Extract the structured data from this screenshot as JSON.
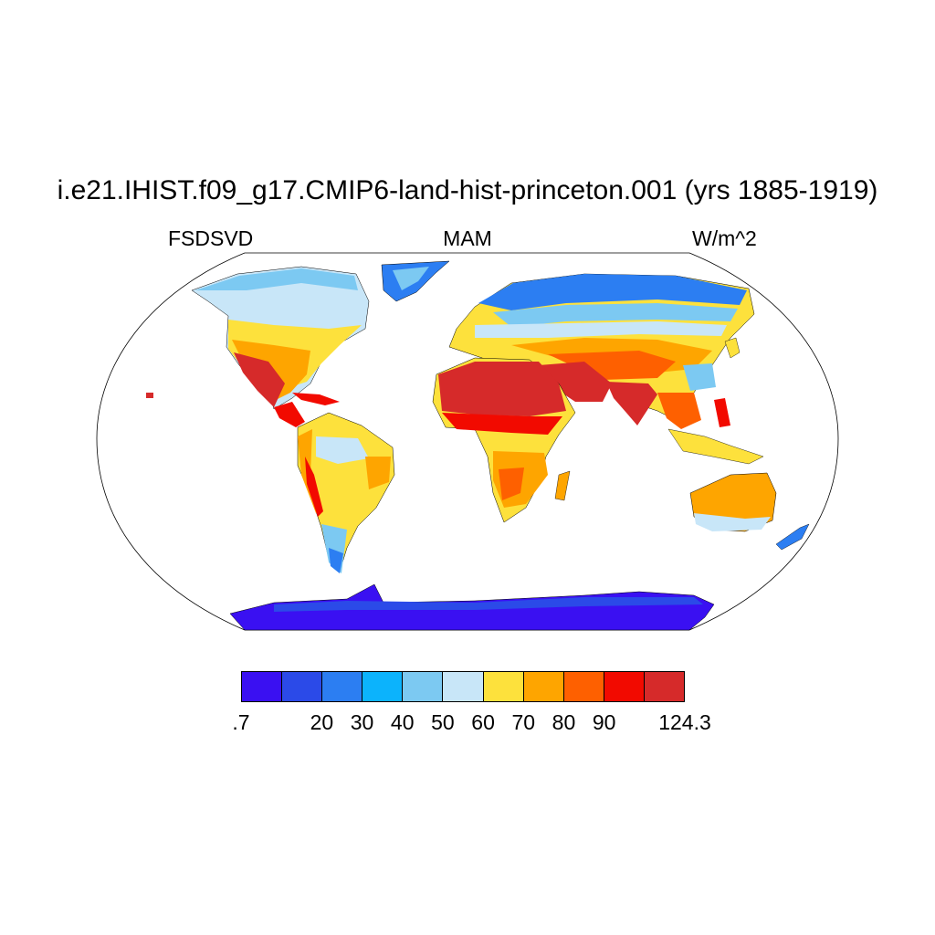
{
  "title": "i.e21.IHIST.f09_g17.CMIP6-land-hist-princeton.001 (yrs 1885-1919)",
  "variable": "FSDSVD",
  "season": "MAM",
  "units": "W/m^2",
  "colorbar": {
    "colors": [
      "#3a10f2",
      "#2b4ae8",
      "#2c7ef2",
      "#0cb3fc",
      "#7cc9f2",
      "#c8e6f8",
      "#fde13c",
      "#fea500",
      "#fe6000",
      "#f20a00",
      "#d62a2a"
    ],
    "labels": [
      ".7",
      "",
      "20",
      "30",
      "40",
      "50",
      "60",
      "70",
      "80",
      "90",
      "",
      "124.3"
    ]
  },
  "map": {
    "projection": "robinson",
    "ocean_color": "#ffffff",
    "outline_color": "#000000"
  }
}
